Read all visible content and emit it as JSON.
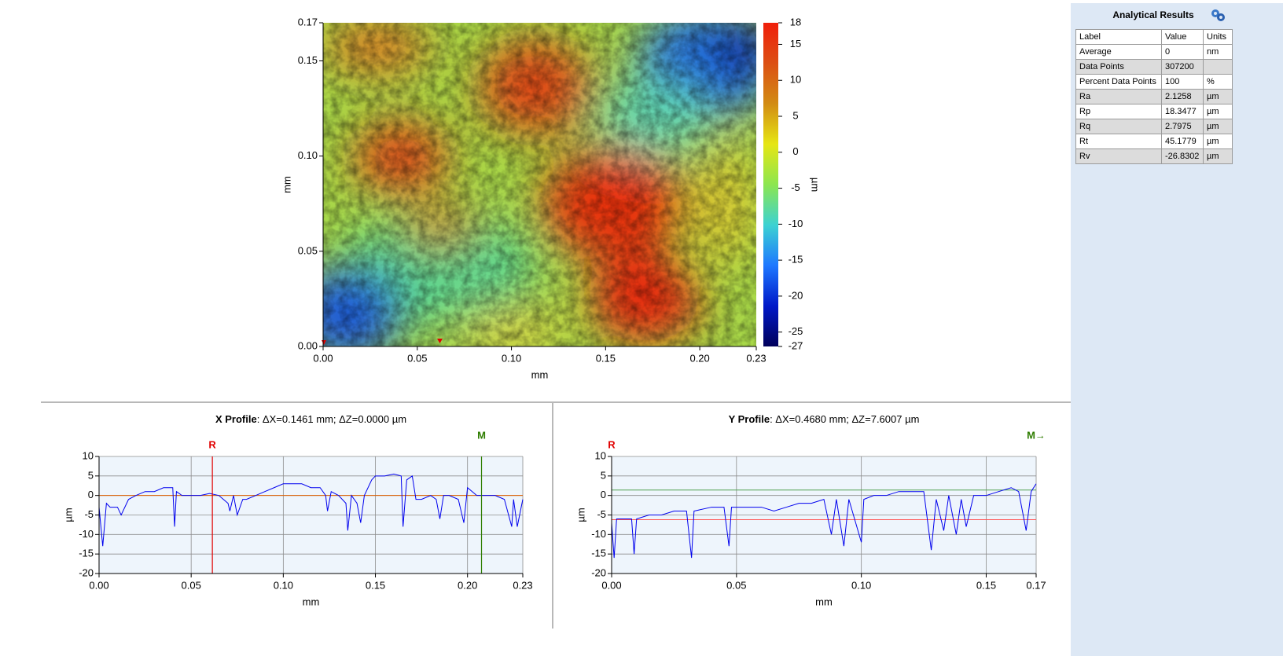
{
  "chart_data": [
    {
      "type": "heatmap",
      "xlabel": "mm",
      "ylabel": "mm",
      "xlim": [
        0,
        0.23
      ],
      "xticks": [
        {
          "value": 0,
          "label": "0.00"
        },
        0.05,
        {
          "value": 0.1,
          "label": "0.10"
        },
        0.15,
        {
          "value": 0.2,
          "label": "0.20"
        },
        0.23
      ],
      "ylim": [
        0,
        0.17
      ],
      "yticks": [
        {
          "value": 0,
          "label": "0.00"
        },
        0.05,
        {
          "value": 0.1,
          "label": "0.10"
        },
        0.15,
        0.17
      ],
      "colorbar": {
        "label": "µm",
        "lim": [
          -27,
          18
        ],
        "ticks": [
          18,
          15,
          10,
          5,
          0,
          -5,
          -10,
          -15,
          -20,
          -25,
          -27
        ],
        "colors": [
          "#00005a",
          "#0018c8",
          "#1e78ff",
          "#3cd2d2",
          "#8ce650",
          "#e6e614",
          "#d28c14",
          "#dc5014",
          "#f01e0a"
        ]
      }
    },
    {
      "type": "line",
      "title": "X Profile",
      "subtitle": ": ΔX=0.1461 mm; ΔZ=0.0000 µm",
      "xlabel": "mm",
      "ylabel": "µm",
      "xlim": [
        0,
        0.23
      ],
      "xticks": [
        {
          "value": 0,
          "label": "0.00"
        },
        0.05,
        {
          "value": 0.1,
          "label": "0.10"
        },
        0.15,
        {
          "value": 0.2,
          "label": "0.20"
        },
        0.23
      ],
      "ylim": [
        -20,
        10
      ],
      "yticks": [
        -20,
        -15,
        -10,
        -5,
        0,
        5,
        10
      ],
      "grid": true,
      "color": "#0000ee",
      "cursor_lines": true,
      "cursors": [
        {
          "label": "R",
          "x": 0.0615,
          "color": "#e00000"
        },
        {
          "label": "M",
          "x": 0.2076,
          "color": "#2e7d00"
        }
      ],
      "ref_lines": [
        {
          "value": 0,
          "color": "#e06000"
        }
      ],
      "x": [
        0,
        0.002,
        0.004,
        0.006,
        0.01,
        0.012,
        0.016,
        0.02,
        0.025,
        0.03,
        0.035,
        0.04,
        0.041,
        0.042,
        0.045,
        0.05,
        0.055,
        0.06,
        0.065,
        0.07,
        0.071,
        0.073,
        0.075,
        0.078,
        0.08,
        0.085,
        0.09,
        0.095,
        0.1,
        0.105,
        0.11,
        0.115,
        0.12,
        0.123,
        0.124,
        0.126,
        0.13,
        0.134,
        0.135,
        0.137,
        0.14,
        0.142,
        0.144,
        0.148,
        0.15,
        0.155,
        0.16,
        0.164,
        0.165,
        0.167,
        0.17,
        0.172,
        0.175,
        0.18,
        0.183,
        0.185,
        0.187,
        0.19,
        0.195,
        0.198,
        0.2,
        0.205,
        0.21,
        0.215,
        0.22,
        0.224,
        0.225,
        0.227,
        0.23
      ],
      "values": [
        -3,
        -13,
        -2,
        -3,
        -3,
        -5,
        -1,
        0,
        1,
        1,
        2,
        2,
        -8,
        1,
        0,
        0,
        0,
        0.5,
        0,
        -2,
        -4,
        0,
        -5,
        -1,
        -1,
        0,
        1,
        2,
        3,
        3,
        3,
        2,
        2,
        0,
        -4,
        1,
        0,
        -2,
        -9,
        0,
        -2,
        -7,
        0,
        4,
        5,
        5,
        5.5,
        5,
        -8,
        4,
        5,
        -1,
        -1,
        0,
        -1,
        -6,
        0,
        0,
        -1,
        -7,
        2,
        0,
        0,
        0,
        -1,
        -8,
        -1,
        -8,
        -1
      ]
    },
    {
      "type": "line",
      "title": "Y Profile",
      "subtitle": ": ΔX=0.4680 mm; ΔZ=7.6007 µm",
      "xlabel": "mm",
      "ylabel": "µm",
      "xlim": [
        0,
        0.17
      ],
      "xticks": [
        {
          "value": 0,
          "label": "0.00"
        },
        0.05,
        {
          "value": 0.1,
          "label": "0.10"
        },
        0.15,
        0.17
      ],
      "ylim": [
        -20,
        10
      ],
      "yticks": [
        -20,
        -15,
        -10,
        -5,
        0,
        5,
        10
      ],
      "grid": true,
      "color": "#0000ee",
      "cursor_lines": false,
      "cursors": [
        {
          "label": "R",
          "x": 0,
          "color": "#e00000"
        },
        {
          "label": "M→",
          "x": 0.17,
          "color": "#2e7d00"
        }
      ],
      "ref_lines": [
        {
          "value": -6.2,
          "color": "#ff5050"
        },
        {
          "value": 1.4,
          "color": "#50a050"
        }
      ],
      "x": [
        0,
        0.001,
        0.002,
        0.004,
        0.008,
        0.009,
        0.01,
        0.015,
        0.02,
        0.025,
        0.03,
        0.032,
        0.033,
        0.04,
        0.045,
        0.047,
        0.048,
        0.055,
        0.06,
        0.065,
        0.07,
        0.075,
        0.08,
        0.085,
        0.088,
        0.09,
        0.093,
        0.095,
        0.1,
        0.101,
        0.105,
        0.11,
        0.115,
        0.12,
        0.125,
        0.128,
        0.13,
        0.133,
        0.135,
        0.138,
        0.14,
        0.142,
        0.145,
        0.15,
        0.155,
        0.16,
        0.163,
        0.166,
        0.168,
        0.17
      ],
      "values": [
        -7,
        -16,
        -6,
        -6,
        -6,
        -15,
        -6,
        -5,
        -5,
        -4,
        -4,
        -16,
        -4,
        -3,
        -3,
        -13,
        -3,
        -3,
        -3,
        -4,
        -3,
        -2,
        -2,
        -1,
        -10,
        -1,
        -13,
        -1,
        -12,
        -1,
        0,
        0,
        1,
        1,
        1,
        -14,
        -1,
        -9,
        0,
        -10,
        -1,
        -8,
        0,
        0,
        1,
        2,
        1,
        -9,
        1,
        3
      ]
    }
  ],
  "results_panel": {
    "title": "Analytical Results",
    "header": [
      "Label",
      "Value",
      "Units"
    ],
    "rows": [
      [
        "Average",
        "0",
        "nm"
      ],
      [
        "Data Points",
        "307200"
      ],
      [
        "Percent Data Points",
        "100",
        "%"
      ],
      [
        "Ra",
        "2.1258",
        "µm"
      ],
      [
        "Rp",
        "18.3477",
        "µm"
      ],
      [
        "Rq",
        "2.7975",
        "µm"
      ],
      [
        "Rt",
        "45.1779",
        "µm"
      ],
      [
        "Rv",
        "-26.8302",
        "µm"
      ]
    ]
  }
}
